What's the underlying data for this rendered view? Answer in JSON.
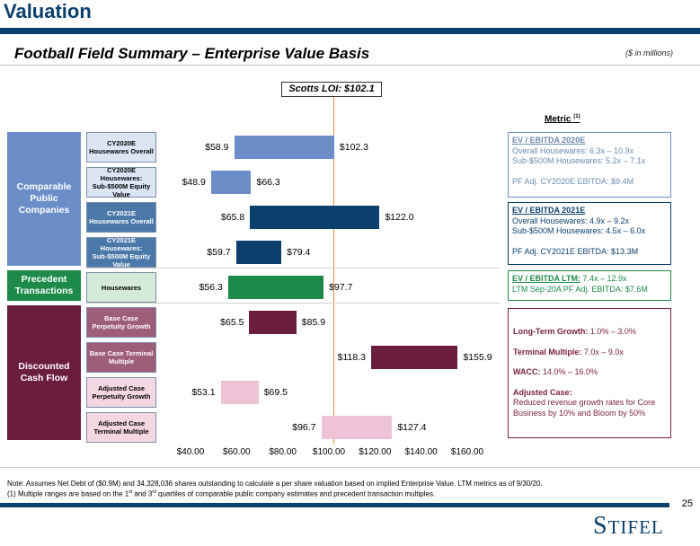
{
  "header": {
    "title": "Valuation",
    "subtitle": "Football Field Summary – Enterprise Value Basis",
    "units": "($ in millions)"
  },
  "loi": {
    "label": "Scotts LOI: $102.1",
    "value": 102.1
  },
  "metric_header": "Metric",
  "metric_header_sup": "(1)",
  "sections": [
    {
      "label": "Comparable Public Companies",
      "color": "#6b8ec9"
    },
    {
      "label": "Precedent Transactions",
      "color": "#1d8a4a"
    },
    {
      "label": "Discounted Cash Flow",
      "color": "#6b1d3d"
    }
  ],
  "chart_data": {
    "type": "bar",
    "orientation": "horizontal-range",
    "title": "Football Field Summary – Enterprise Value Basis",
    "xlim": [
      40,
      160
    ],
    "x_ticks": [
      "$40.00",
      "$60.00",
      "$80.00",
      "$100.00",
      "$120.00",
      "$140.00",
      "$160.00"
    ],
    "reference_line": {
      "label": "Scotts LOI: $102.1",
      "value": 102.1
    },
    "rows": [
      {
        "label": "CY2020E Housewares Overall",
        "low": 58.9,
        "high": 102.3,
        "low_label": "$58.9",
        "high_label": "$102.3",
        "color": "#6b8ec9",
        "label_fill": "#dbe5f4",
        "label_text": "#000000"
      },
      {
        "label": "CY2020E Housewares: Sub-$500M Equity Value",
        "low": 48.9,
        "high": 66.3,
        "low_label": "$48.9",
        "high_label": "$66.3",
        "color": "#6b8ec9",
        "label_fill": "#dbe5f4",
        "label_text": "#000000"
      },
      {
        "label": "CY2021E Housewares Overall",
        "low": 65.8,
        "high": 122.0,
        "low_label": "$65.8",
        "high_label": "$122.0",
        "color": "#0b3f6c",
        "label_fill": "#4a78a8",
        "label_text": "#ffffff"
      },
      {
        "label": "CY2021E Housewares: Sub-$500M Equity Value",
        "low": 59.7,
        "high": 79.4,
        "low_label": "$59.7",
        "high_label": "$79.4",
        "color": "#0b3f6c",
        "label_fill": "#4a78a8",
        "label_text": "#ffffff"
      },
      {
        "label": "Housewares",
        "low": 56.3,
        "high": 97.7,
        "low_label": "$56.3",
        "high_label": "$97.7",
        "color": "#1d8a4a",
        "label_fill": "#d4ebd9",
        "label_text": "#000000"
      },
      {
        "label": "Base Case Perpetuity Growth",
        "low": 65.5,
        "high": 85.9,
        "low_label": "$65.5",
        "high_label": "$85.9",
        "color": "#6b1d3d",
        "label_fill": "#9e5d78",
        "label_text": "#ffffff"
      },
      {
        "label": "Base Case Terminal Multiple",
        "low": 118.3,
        "high": 155.9,
        "low_label": "$118.3",
        "high_label": "$155.9",
        "color": "#6b1d3d",
        "label_fill": "#9e5d78",
        "label_text": "#ffffff"
      },
      {
        "label": "Adjusted Case Perpetuity Growth",
        "low": 53.1,
        "high": 69.5,
        "low_label": "$53.1",
        "high_label": "$69.5",
        "color": "#efc3d6",
        "label_fill": "#f5d7e3",
        "label_text": "#000000"
      },
      {
        "label": "Adjusted Case Terminal Multiple",
        "low": 96.7,
        "high": 127.4,
        "low_label": "$96.7",
        "high_label": "$127.4",
        "color": "#efc3d6",
        "label_fill": "#f5d7e3",
        "label_text": "#000000"
      }
    ]
  },
  "metrics": {
    "box1": {
      "title": "EV / EBITDA 2020E",
      "line1": "Overall Housewares: 6.3x – 10.9x",
      "line2": "Sub-$500M Housewares: 5.2x – 7.1x",
      "line3": "PF Adj. CY2020E EBITDA: $9.4M"
    },
    "box2": {
      "title": "EV / EBITDA 2021E",
      "line1": "Overall Housewares: 4.9x – 9.2x",
      "line2": "Sub-$500M Housewares: 4.5x – 6.0x",
      "line3": "PF Adj. CY2021E EBITDA: $13.3M"
    },
    "box3": {
      "title": "EV / EBITDA LTM:",
      "title_rest": "7.4x – 12.9x",
      "line1": "LTM Sep-20A PF Adj. EBITDA: $7.6M"
    },
    "dcf": {
      "ltg_label": "Long-Term Growth:",
      "ltg_value": "1.0% – 3.0%",
      "tm_label": "Terminal Multiple:",
      "tm_value": "7.0x – 9.0x",
      "wacc_label": "WACC:",
      "wacc_value": "14.0% – 16.0%",
      "adj_label": "Adjusted Case:",
      "adj_text": "Reduced revenue growth rates for Core Business by 10% and Bloom by 50%"
    }
  },
  "notes": {
    "note1": "Note: Assumes Net Debt of ($0.9M) and 34,328,036 shares outstanding to calculate a per share valuation based on implied Enterprise Value. LTM metrics as of 9/30/20.",
    "note2_a": "(1)    Multiple ranges are based on the 1",
    "note2_sup1": "st",
    "note2_b": " and 3",
    "note2_sup2": "rd",
    "note2_c": " quartiles of comparable public company estimates and precedent transaction multiples."
  },
  "page_number": "25",
  "logo": {
    "big": "S",
    "rest": "TIFEL"
  }
}
